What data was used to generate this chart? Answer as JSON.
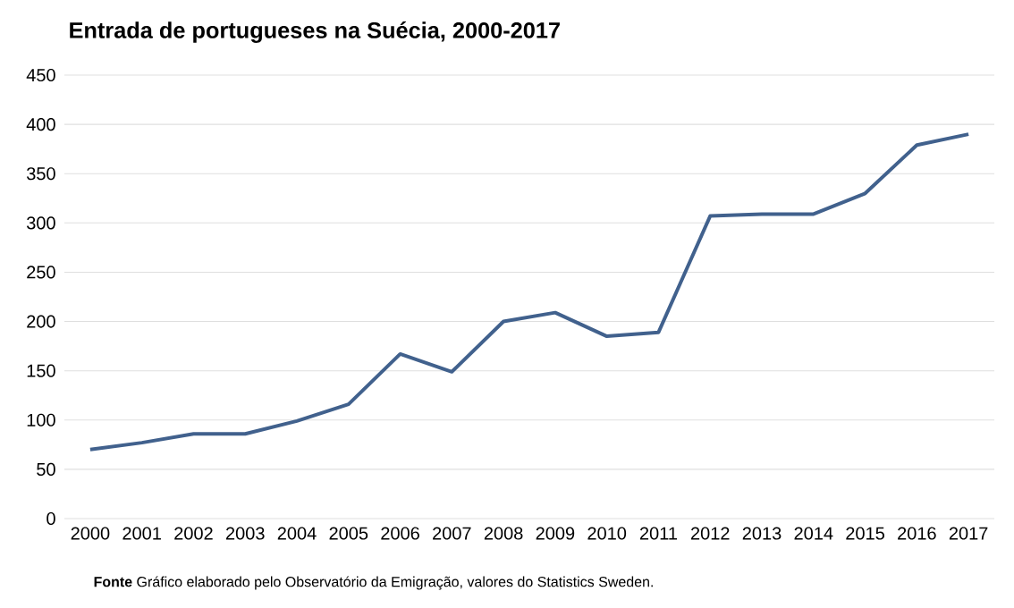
{
  "chart_data": {
    "type": "line",
    "title": "Entrada de portugueses na Suécia, 2000-2017",
    "categories": [
      "2000",
      "2001",
      "2002",
      "2003",
      "2004",
      "2005",
      "2006",
      "2007",
      "2008",
      "2009",
      "2010",
      "2011",
      "2012",
      "2013",
      "2014",
      "2015",
      "2016",
      "2017"
    ],
    "values": [
      70,
      77,
      86,
      86,
      99,
      116,
      167,
      149,
      200,
      209,
      185,
      189,
      307,
      309,
      309,
      330,
      379,
      390
    ],
    "color": "#41618d",
    "ylim": [
      0,
      450
    ],
    "yticks": [
      0,
      50,
      100,
      150,
      200,
      250,
      300,
      350,
      400,
      450
    ],
    "grid": "y",
    "marker": "none",
    "annotations": [
      "**Fonte** Gráfico elaborado pelo Observatório da Emigração, valores do Statistics Sweden."
    ]
  }
}
